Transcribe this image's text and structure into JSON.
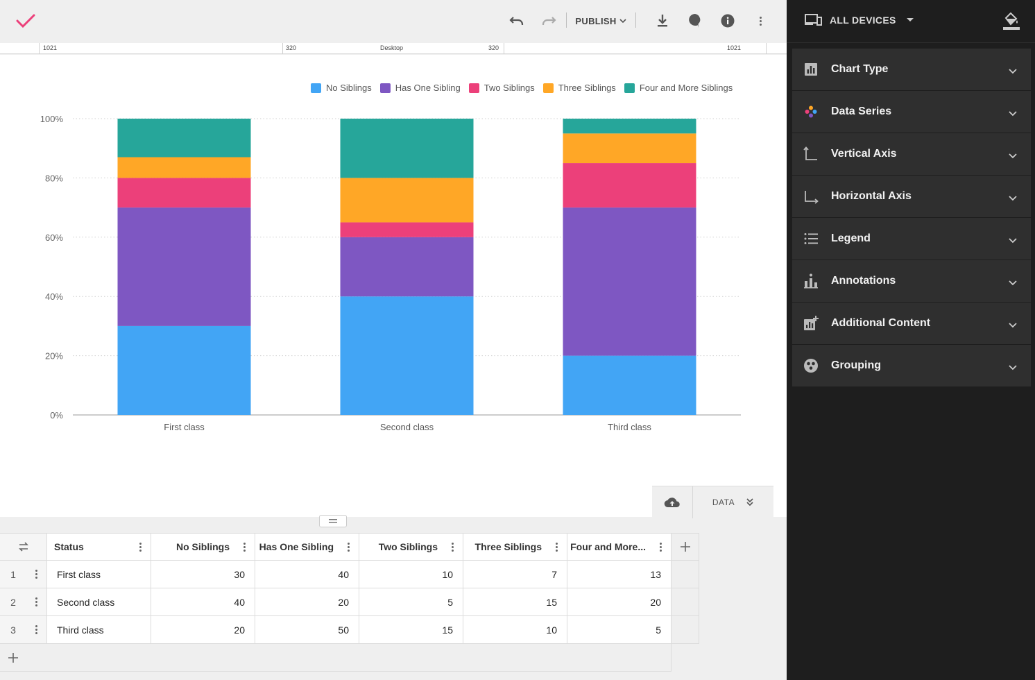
{
  "toolbar": {
    "publish_label": "PUBLISH"
  },
  "ruler": {
    "left_width": "1021",
    "mid_left": "320",
    "device": "Desktop",
    "mid_right": "320",
    "right_width": "1021"
  },
  "colors": {
    "no_siblings": "#42a5f5",
    "has_one": "#7e57c2",
    "two": "#ec407a",
    "three": "#ffa726",
    "four_plus": "#26a69a",
    "accent_check": "#ec407a"
  },
  "chart_data": {
    "type": "bar",
    "stacked": "percent",
    "categories": [
      "First class",
      "Second class",
      "Third class"
    ],
    "series": [
      {
        "name": "No Siblings",
        "values": [
          30,
          40,
          20
        ]
      },
      {
        "name": "Has One Sibling",
        "values": [
          40,
          20,
          50
        ]
      },
      {
        "name": "Two Siblings",
        "values": [
          10,
          5,
          15
        ]
      },
      {
        "name": "Three Siblings",
        "values": [
          7,
          15,
          10
        ]
      },
      {
        "name": "Four and More Siblings",
        "values": [
          13,
          20,
          5
        ]
      }
    ],
    "yticks": [
      "0%",
      "20%",
      "40%",
      "60%",
      "80%",
      "100%"
    ],
    "ylim": [
      0,
      100
    ],
    "grid": true,
    "legend_position": "top-right"
  },
  "data_toggle": {
    "label": "DATA"
  },
  "table": {
    "headers": [
      "Status",
      "No Siblings",
      "Has One Sibling",
      "Two Siblings",
      "Three Siblings",
      "Four and More..."
    ],
    "rows": [
      {
        "num": "1",
        "cells": [
          "First class",
          "30",
          "40",
          "10",
          "7",
          "13"
        ]
      },
      {
        "num": "2",
        "cells": [
          "Second class",
          "40",
          "20",
          "5",
          "15",
          "20"
        ]
      },
      {
        "num": "3",
        "cells": [
          "Third class",
          "20",
          "50",
          "15",
          "10",
          "5"
        ]
      }
    ]
  },
  "panel": {
    "devices_label": "ALL DEVICES",
    "sections": [
      {
        "label": "Chart Type",
        "icon": "bar-chart-icon"
      },
      {
        "label": "Data Series",
        "icon": "palette-icon"
      },
      {
        "label": "Vertical Axis",
        "icon": "vertical-axis-icon"
      },
      {
        "label": "Horizontal Axis",
        "icon": "horizontal-axis-icon"
      },
      {
        "label": "Legend",
        "icon": "list-icon"
      },
      {
        "label": "Annotations",
        "icon": "annotations-icon"
      },
      {
        "label": "Additional Content",
        "icon": "add-chart-icon"
      },
      {
        "label": "Grouping",
        "icon": "grouping-icon"
      }
    ]
  }
}
